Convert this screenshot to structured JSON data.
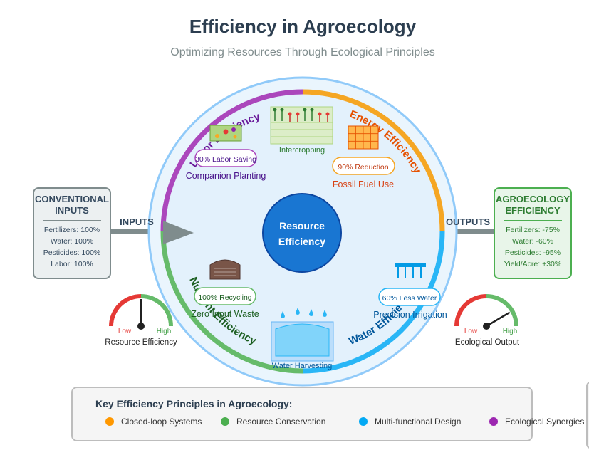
{
  "header": {
    "title": "Efficiency in Agroecology",
    "subtitle": "Optimizing Resources Through Ecological Principles"
  },
  "center": {
    "line1": "Resource",
    "line2": "Efficiency"
  },
  "flow": {
    "inputs_label": "INPUTS",
    "outputs_label": "OUTPUTS"
  },
  "segments": {
    "labor": {
      "label": "Labor Efficiency",
      "color": "#ab47bc"
    },
    "energy": {
      "label": "Energy Efficiency",
      "color": "#f5a623"
    },
    "water": {
      "label": "Water Efficiency",
      "color": "#29b6f6"
    },
    "nutrient": {
      "label": "Nutrient Efficiency",
      "color": "#66bb6a"
    }
  },
  "practices": {
    "intercropping": "Intercropping",
    "companion": "Companion Planting",
    "labor_badge": "30% Labor Saving",
    "fossil": "Fossil Fuel Use",
    "energy_badge": "90% Reduction",
    "zero_waste": "Zero Input Waste",
    "recycle_badge": "100% Recycling",
    "precision": "Precision Irrigation",
    "water_badge": "60% Less Water",
    "harvesting": "Water Harvesting"
  },
  "conventional": {
    "title_line1": "CONVENTIONAL",
    "title_line2": "INPUTS",
    "items": [
      "Fertilizers: 100%",
      "Water: 100%",
      "Pesticides: 100%",
      "Labor: 100%"
    ]
  },
  "agroecology": {
    "title_line1": "AGROECOLOGY",
    "title_line2": "EFFICIENCY",
    "items": [
      "Fertilizers: -75%",
      "Water: -60%",
      "Pesticides: -95%",
      "Yield/Acre: +30%"
    ]
  },
  "gauges": {
    "left": {
      "low": "Low",
      "high": "High",
      "caption": "Resource Efficiency",
      "level": 0.5
    },
    "right": {
      "low": "Low",
      "high": "High",
      "caption": "Ecological Output",
      "level": 0.83
    }
  },
  "legend": {
    "title": "Key Efficiency Principles in Agroecology:",
    "items": [
      {
        "label": "Closed-loop Systems",
        "color": "#ff9800"
      },
      {
        "label": "Resource Conservation",
        "color": "#4caf50"
      },
      {
        "label": "Multi-functional Design",
        "color": "#03a9f4"
      },
      {
        "label": "Ecological Synergies",
        "color": "#9c27b0"
      }
    ]
  }
}
